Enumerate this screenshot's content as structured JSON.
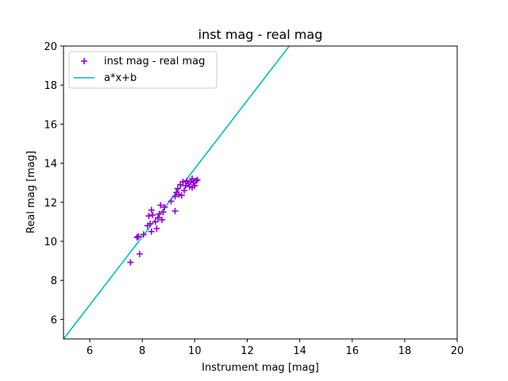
{
  "chart_data": {
    "type": "scatter",
    "title": "inst mag - real mag",
    "xlabel": "Instrument mag [mag]",
    "ylabel": "Real mag [mag]",
    "xlim": [
      5,
      20
    ],
    "ylim": [
      5,
      20
    ],
    "xticks": [
      "6",
      "8",
      "10",
      "12",
      "14",
      "16",
      "18",
      "20"
    ],
    "yticks": [
      "6",
      "8",
      "10",
      "12",
      "14",
      "16",
      "18",
      "20"
    ],
    "grid": false,
    "legend_position": "top-left",
    "series": [
      {
        "name": "inst mag - real mag",
        "kind": "scatter",
        "marker": "plus",
        "color": "#9400d3",
        "points": [
          [
            7.55,
            8.92
          ],
          [
            7.9,
            9.35
          ],
          [
            7.8,
            10.2
          ],
          [
            7.85,
            10.25
          ],
          [
            8.05,
            10.35
          ],
          [
            8.2,
            10.8
          ],
          [
            8.3,
            10.9
          ],
          [
            8.35,
            10.5
          ],
          [
            8.25,
            11.3
          ],
          [
            8.4,
            11.35
          ],
          [
            8.35,
            11.6
          ],
          [
            8.5,
            11.0
          ],
          [
            8.55,
            10.65
          ],
          [
            8.6,
            11.2
          ],
          [
            8.65,
            11.4
          ],
          [
            8.7,
            11.85
          ],
          [
            8.75,
            11.1
          ],
          [
            8.8,
            11.5
          ],
          [
            8.85,
            11.75
          ],
          [
            9.1,
            12.05
          ],
          [
            9.25,
            11.55
          ],
          [
            9.25,
            12.3
          ],
          [
            9.3,
            12.5
          ],
          [
            9.35,
            12.7
          ],
          [
            9.4,
            12.4
          ],
          [
            9.45,
            12.9
          ],
          [
            9.5,
            12.35
          ],
          [
            9.55,
            13.05
          ],
          [
            9.6,
            12.6
          ],
          [
            9.65,
            12.85
          ],
          [
            9.7,
            13.1
          ],
          [
            9.75,
            12.95
          ],
          [
            9.8,
            12.8
          ],
          [
            9.85,
            13.05
          ],
          [
            9.9,
            12.75
          ],
          [
            9.9,
            13.2
          ],
          [
            9.95,
            13.0
          ],
          [
            10.0,
            12.85
          ],
          [
            10.05,
            13.1
          ],
          [
            10.1,
            13.15
          ]
        ]
      },
      {
        "name": "a*x+b",
        "kind": "line",
        "color": "#00bfbf",
        "slope": 1.745,
        "intercept": -3.73
      }
    ]
  }
}
